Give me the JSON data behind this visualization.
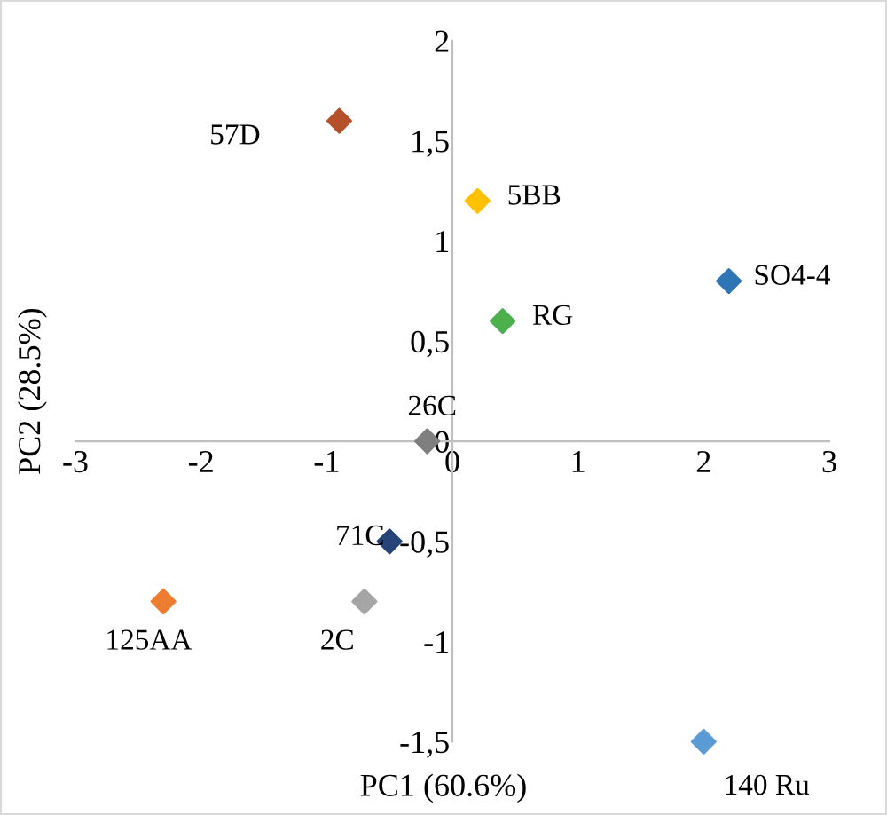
{
  "chart_data": {
    "type": "scatter",
    "xlabel": "PC1 (60.6%)",
    "ylabel": "PC2 (28.5%)",
    "marker": "diamond",
    "grid": false,
    "legend": false,
    "xlim": [
      -3,
      3
    ],
    "ylim": [
      -1.5,
      2
    ],
    "xticks": [
      -3,
      -2,
      -1,
      0,
      1,
      2,
      3
    ],
    "yticks": [
      {
        "value": -1.5,
        "label": "-1,5"
      },
      {
        "value": -1,
        "label": "-1"
      },
      {
        "value": -0.5,
        "label": "-0,5"
      },
      {
        "value": 0,
        "label": "0"
      },
      {
        "value": 0.5,
        "label": "0,5"
      },
      {
        "value": 1,
        "label": "1"
      },
      {
        "value": 1.5,
        "label": "1,5"
      },
      {
        "value": 2,
        "label": "2"
      }
    ],
    "series": [
      {
        "name": "57D",
        "color": "#b4502a",
        "x": [
          -0.9
        ],
        "values": [
          1.6
        ]
      },
      {
        "name": "5BB",
        "color": "#ffc000",
        "x": [
          0.2
        ],
        "values": [
          1.2
        ]
      },
      {
        "name": "SO4-4",
        "color": "#2e75b6",
        "x": [
          2.2
        ],
        "values": [
          0.8
        ]
      },
      {
        "name": "RG",
        "color": "#4cb04c",
        "x": [
          0.4
        ],
        "values": [
          0.6
        ]
      },
      {
        "name": "26C",
        "color": "#7f7f7f",
        "x": [
          -0.2
        ],
        "values": [
          0
        ]
      },
      {
        "name": "71C",
        "color": "#264478",
        "x": [
          -0.5
        ],
        "values": [
          -0.5
        ]
      },
      {
        "name": "125AA",
        "color": "#ed7d31",
        "x": [
          -2.3
        ],
        "values": [
          -0.8
        ]
      },
      {
        "name": "2C",
        "color": "#a5a5a5",
        "x": [
          -0.7
        ],
        "values": [
          -0.8
        ]
      },
      {
        "name": "140 Ru",
        "color": "#5b9bd5",
        "x": [
          2.0
        ],
        "values": [
          -1.5
        ]
      }
    ]
  }
}
